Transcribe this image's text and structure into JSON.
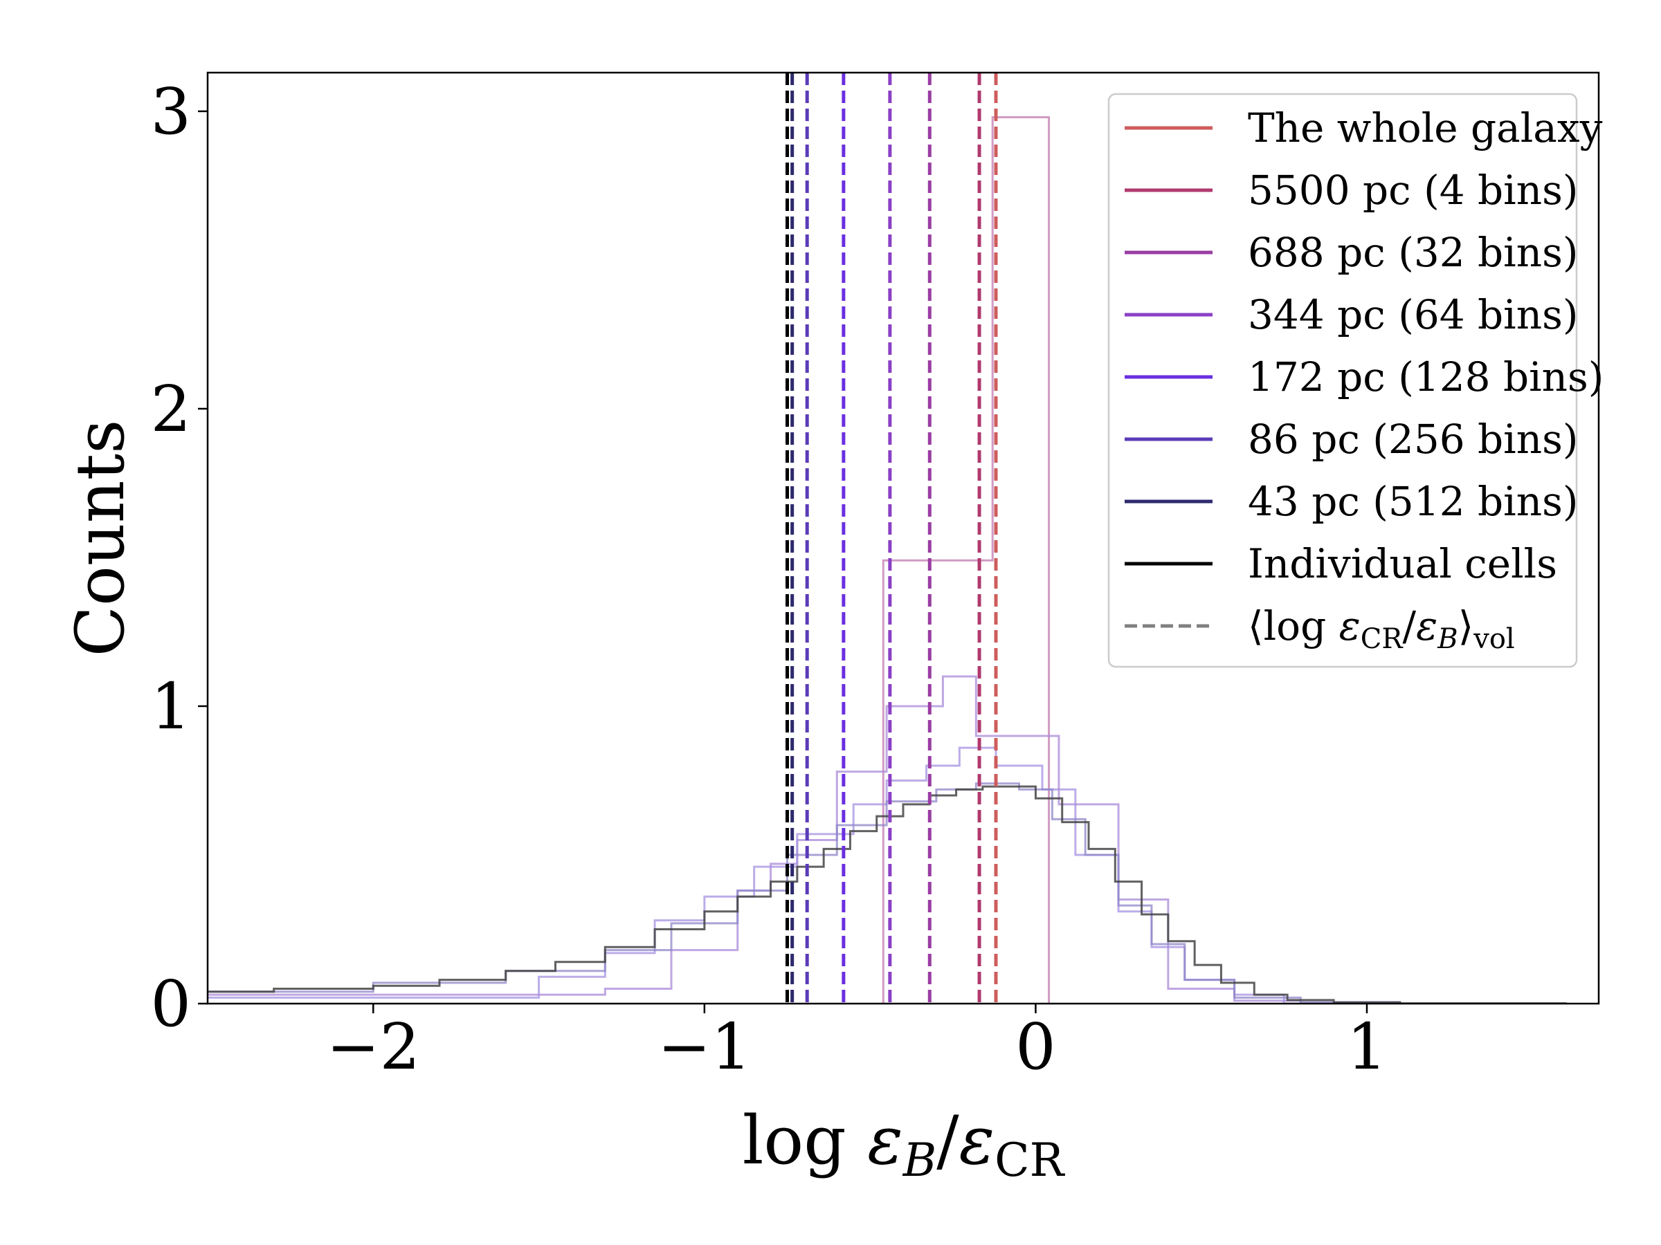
{
  "chart_data": {
    "type": "histogram",
    "title": "",
    "xlabel": "log εB/εCR",
    "ylabel": "Counts",
    "xlim": [
      -2.5,
      1.7
    ],
    "ylim": [
      0,
      3.13
    ],
    "xticks": [
      {
        "value": -2,
        "label": "−2"
      },
      {
        "value": -1,
        "label": "−1"
      },
      {
        "value": 0,
        "label": "0"
      },
      {
        "value": 1,
        "label": "1"
      }
    ],
    "yticks": [
      {
        "value": 0,
        "label": "0"
      },
      {
        "value": 1,
        "label": "1"
      },
      {
        "value": 2,
        "label": "2"
      },
      {
        "value": 3,
        "label": "3"
      }
    ],
    "grid": false,
    "legend_position": "top-right",
    "legend": [
      {
        "label": "The whole galaxy",
        "color": "#cd5c5c",
        "style": "solid"
      },
      {
        "label": "5500 pc (4 bins)",
        "color": "#b03a6e",
        "style": "solid"
      },
      {
        "label": "688 pc (32 bins)",
        "color": "#9a3da3",
        "style": "solid"
      },
      {
        "label": "344 pc (64 bins)",
        "color": "#8a3fc4",
        "style": "solid"
      },
      {
        "label": "172 pc (128 bins)",
        "color": "#6a2fe0",
        "style": "solid"
      },
      {
        "label": "86 pc (256 bins)",
        "color": "#5a3bb8",
        "style": "solid"
      },
      {
        "label": "43 pc (512 bins)",
        "color": "#2e2a6e",
        "style": "solid"
      },
      {
        "label": "Individual cells",
        "color": "#000000",
        "style": "solid"
      },
      {
        "label": "⟨log εCR/εB⟩vol",
        "color": "#808080",
        "style": "dashed"
      }
    ],
    "vlines": [
      {
        "x": -0.12,
        "color": "#cd5c5c",
        "label": "The whole galaxy"
      },
      {
        "x": -0.17,
        "color": "#b03a6e",
        "label": "5500 pc (4 bins)"
      },
      {
        "x": -0.32,
        "color": "#9a3da3",
        "label": "688 pc (32 bins)"
      },
      {
        "x": -0.44,
        "color": "#8a3fc4",
        "label": "344 pc (64 bins)"
      },
      {
        "x": -0.58,
        "color": "#6a2fe0",
        "label": "172 pc (128 bins)"
      },
      {
        "x": -0.69,
        "color": "#5a3bb8",
        "label": "86 pc (256 bins)"
      },
      {
        "x": -0.735,
        "color": "#2e2a6e",
        "label": "43 pc (512 bins)"
      },
      {
        "x": -0.75,
        "color": "#000000",
        "label": "Individual cells"
      }
    ],
    "series": [
      {
        "name": "5500 pc (4 bins)",
        "color": "#c27ab0",
        "edges": [
          -0.46,
          -0.13,
          0.04
        ],
        "counts": [
          1.49,
          2.98
        ]
      },
      {
        "name": "688 pc (32 bins)",
        "color": "#a98ad8",
        "edges": [
          -2.6,
          -1.3,
          -1.1,
          -0.9,
          -0.8,
          -0.72,
          -0.6,
          -0.45,
          -0.28,
          -0.18,
          0.07,
          0.25,
          0.4,
          0.6,
          0.8
        ],
        "counts": [
          0.03,
          0.05,
          0.18,
          0.38,
          0.47,
          0.55,
          0.78,
          1.0,
          1.1,
          0.9,
          0.67,
          0.35,
          0.05,
          0.01
        ]
      },
      {
        "name": "344 pc (64 bins)",
        "color": "#a592e2",
        "edges": [
          -2.6,
          -1.5,
          -1.3,
          -1.15,
          -1.0,
          -0.85,
          -0.72,
          -0.55,
          -0.45,
          -0.33,
          -0.23,
          -0.12,
          0.02,
          0.12,
          0.25,
          0.35,
          0.45,
          0.6,
          0.75,
          1.0
        ],
        "counts": [
          0.02,
          0.09,
          0.17,
          0.28,
          0.36,
          0.46,
          0.57,
          0.67,
          0.75,
          0.8,
          0.86,
          0.8,
          0.72,
          0.5,
          0.31,
          0.19,
          0.08,
          0.03,
          0.0
        ]
      },
      {
        "name": "86 pc (256 bins)",
        "color": "#8d86c8",
        "edges": [
          -2.6,
          -2.0,
          -1.6,
          -1.3,
          -1.1,
          -0.9,
          -0.75,
          -0.6,
          -0.45,
          -0.3,
          -0.18,
          -0.05,
          0.05,
          0.15,
          0.25,
          0.35,
          0.45,
          0.6,
          0.8,
          1.1
        ],
        "counts": [
          0.04,
          0.07,
          0.11,
          0.18,
          0.27,
          0.38,
          0.5,
          0.6,
          0.68,
          0.72,
          0.74,
          0.72,
          0.62,
          0.5,
          0.33,
          0.2,
          0.08,
          0.02,
          0.005
        ]
      },
      {
        "name": "Individual cells",
        "color": "#444444",
        "edges": [
          -2.6,
          -2.3,
          -2.0,
          -1.8,
          -1.6,
          -1.45,
          -1.3,
          -1.15,
          -1.0,
          -0.9,
          -0.8,
          -0.72,
          -0.64,
          -0.56,
          -0.48,
          -0.4,
          -0.32,
          -0.24,
          -0.16,
          -0.08,
          0.0,
          0.08,
          0.16,
          0.24,
          0.32,
          0.4,
          0.48,
          0.56,
          0.66,
          0.76,
          0.9,
          1.1,
          1.6
        ],
        "counts": [
          0.04,
          0.05,
          0.06,
          0.08,
          0.11,
          0.14,
          0.19,
          0.25,
          0.31,
          0.36,
          0.41,
          0.46,
          0.52,
          0.58,
          0.63,
          0.67,
          0.7,
          0.72,
          0.73,
          0.73,
          0.69,
          0.61,
          0.52,
          0.41,
          0.3,
          0.21,
          0.13,
          0.07,
          0.03,
          0.012,
          0.004,
          0.001
        ]
      }
    ]
  }
}
